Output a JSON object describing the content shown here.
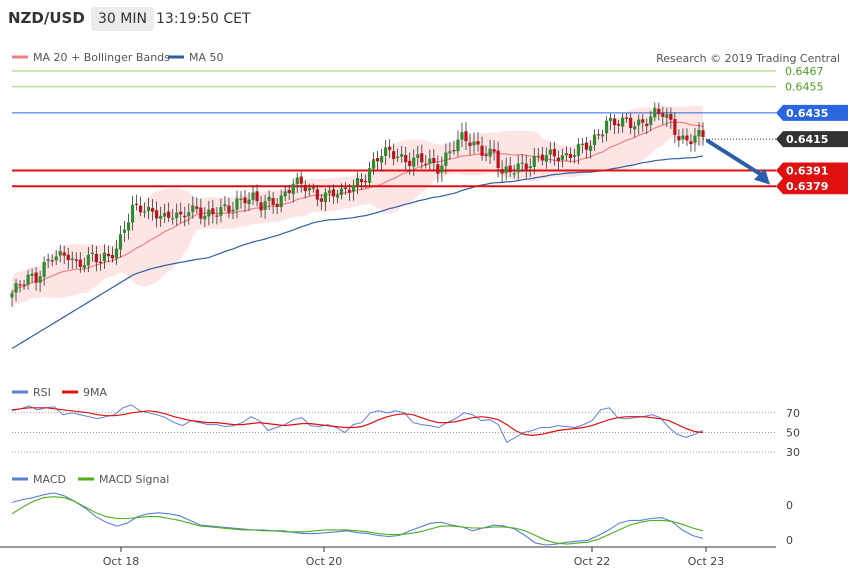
{
  "header": {
    "pair": "NZD/USD",
    "timeframe": "30 MIN",
    "time": "13:19:50 CET"
  },
  "legend_main": [
    {
      "name": "MA 20 + Bollinger Bands",
      "color": "#f08080"
    },
    {
      "name": "MA 50",
      "color": "#2f5e9e"
    }
  ],
  "legend_rsi": [
    {
      "name": "RSI",
      "color": "#5b7fd6"
    },
    {
      "name": "9MA",
      "color": "#e01010"
    }
  ],
  "legend_macd": [
    {
      "name": "MACD",
      "color": "#5b7fd6"
    },
    {
      "name": "MACD Signal",
      "color": "#4caf1a"
    }
  ],
  "copyright": "Research © 2019 Trading Central",
  "chart_data": {
    "type": "candlestick",
    "symbol": "NZD/USD",
    "interval": "30 MIN",
    "x_ticks": [
      "Oct 18",
      "Oct 20",
      "Oct 22",
      "Oct 23"
    ],
    "y_range": [
      0.6234,
      0.648
    ],
    "levels": [
      {
        "value": 0.6467,
        "label": "0.6467",
        "style": "thin",
        "color": "#9bd46a"
      },
      {
        "value": 0.6455,
        "label": "0.6455",
        "style": "thin",
        "color": "#9bd46a"
      },
      {
        "value": 0.6435,
        "label": "0.6435",
        "style": "thin",
        "color": "#2a66e0"
      },
      {
        "value": 0.6391,
        "label": "0.6391",
        "style": "bold",
        "color": "#e01010"
      },
      {
        "value": 0.6379,
        "label": "0.6379",
        "style": "bold",
        "color": "#e01010"
      }
    ],
    "last_price": {
      "value": 0.6415,
      "label": "0.6415",
      "color": "#333333"
    },
    "forecast_arrow": {
      "from": 0.6415,
      "to": 0.6381,
      "color": "#2b5ea8"
    },
    "price_path": [
      [
        0,
        0.6297
      ],
      [
        2,
        0.6302
      ],
      [
        4,
        0.6308
      ],
      [
        6,
        0.631
      ],
      [
        8,
        0.632
      ],
      [
        10,
        0.6326
      ],
      [
        12,
        0.6323
      ],
      [
        14,
        0.6325
      ],
      [
        16,
        0.632
      ],
      [
        18,
        0.6324
      ],
      [
        20,
        0.6326
      ],
      [
        22,
        0.632
      ],
      [
        24,
        0.6324
      ],
      [
        26,
        0.6332
      ],
      [
        28,
        0.635
      ],
      [
        30,
        0.6362
      ],
      [
        32,
        0.636
      ],
      [
        34,
        0.6358
      ],
      [
        36,
        0.636
      ],
      [
        38,
        0.6357
      ],
      [
        40,
        0.6358
      ],
      [
        42,
        0.6352
      ],
      [
        44,
        0.636
      ],
      [
        46,
        0.6362
      ],
      [
        48,
        0.6359
      ],
      [
        50,
        0.6358
      ],
      [
        52,
        0.6359
      ],
      [
        54,
        0.636
      ],
      [
        56,
        0.6368
      ],
      [
        58,
        0.6372
      ],
      [
        60,
        0.637
      ],
      [
        62,
        0.6362
      ],
      [
        64,
        0.6366
      ],
      [
        66,
        0.6368
      ],
      [
        68,
        0.6375
      ],
      [
        70,
        0.6382
      ],
      [
        72,
        0.6378
      ],
      [
        74,
        0.6376
      ],
      [
        76,
        0.6372
      ],
      [
        78,
        0.6374
      ],
      [
        80,
        0.6374
      ],
      [
        82,
        0.6371
      ],
      [
        84,
        0.6377
      ],
      [
        86,
        0.6383
      ],
      [
        88,
        0.6388
      ],
      [
        90,
        0.6396
      ],
      [
        92,
        0.6402
      ],
      [
        94,
        0.6404
      ],
      [
        96,
        0.6404
      ],
      [
        98,
        0.64
      ],
      [
        100,
        0.6399
      ],
      [
        102,
        0.6397
      ],
      [
        104,
        0.6396
      ],
      [
        106,
        0.6394
      ],
      [
        108,
        0.6403
      ],
      [
        110,
        0.641
      ],
      [
        112,
        0.6414
      ],
      [
        114,
        0.6412
      ],
      [
        116,
        0.641
      ],
      [
        118,
        0.6406
      ],
      [
        120,
        0.6404
      ],
      [
        122,
        0.6386
      ],
      [
        124,
        0.639
      ],
      [
        126,
        0.6396
      ],
      [
        128,
        0.6397
      ],
      [
        130,
        0.6398
      ],
      [
        132,
        0.64
      ],
      [
        134,
        0.6402
      ],
      [
        136,
        0.6404
      ],
      [
        138,
        0.6403
      ],
      [
        140,
        0.6405
      ],
      [
        142,
        0.6407
      ],
      [
        144,
        0.641
      ],
      [
        146,
        0.642
      ],
      [
        148,
        0.643
      ],
      [
        150,
        0.6427
      ],
      [
        152,
        0.6426
      ],
      [
        154,
        0.6426
      ],
      [
        156,
        0.6428
      ],
      [
        158,
        0.6431
      ],
      [
        160,
        0.6434
      ],
      [
        162,
        0.6433
      ],
      [
        164,
        0.6426
      ],
      [
        166,
        0.6418
      ],
      [
        168,
        0.6415
      ],
      [
        170,
        0.6417
      ],
      [
        172,
        0.6415
      ]
    ],
    "rsi_ticks": [
      70,
      50,
      30
    ],
    "rsi_range": [
      20,
      85
    ],
    "macd_ticks": [
      0,
      0
    ],
    "series": [
      {
        "name": "RSI",
        "values": [
          72,
          74,
          77,
          73,
          75,
          76,
          68,
          70,
          68,
          66,
          64,
          66,
          68,
          75,
          78,
          72,
          70,
          68,
          65,
          60,
          57,
          62,
          60,
          58,
          58,
          56,
          57,
          60,
          66,
          62,
          52,
          55,
          58,
          63,
          65,
          57,
          56,
          58,
          55,
          50,
          58,
          60,
          70,
          72,
          70,
          72,
          70,
          60,
          58,
          57,
          55,
          60,
          64,
          70,
          68,
          62,
          63,
          58,
          40,
          45,
          50,
          52,
          55,
          55,
          57,
          56,
          55,
          58,
          62,
          73,
          75,
          65,
          64,
          65,
          66,
          68,
          65,
          55,
          48,
          45,
          48,
          52
        ]
      },
      {
        "name": "9MA",
        "values": [
          73,
          74,
          75,
          75,
          75,
          74,
          73,
          72,
          71,
          70,
          68,
          67,
          67,
          68,
          70,
          71,
          72,
          71,
          69,
          66,
          64,
          62,
          61,
          60,
          60,
          59,
          58,
          58,
          59,
          60,
          59,
          58,
          57,
          58,
          59,
          59,
          58,
          57,
          56,
          55,
          55,
          56,
          59,
          63,
          66,
          68,
          69,
          68,
          65,
          62,
          60,
          60,
          61,
          63,
          65,
          66,
          65,
          63,
          58,
          52,
          48,
          47,
          48,
          50,
          52,
          53,
          54,
          55,
          57,
          60,
          63,
          65,
          66,
          66,
          66,
          65,
          64,
          62,
          58,
          54,
          51,
          50
        ]
      },
      {
        "name": "MACD",
        "values": [
          6.5,
          6.8,
          7.0,
          7.3,
          7.5,
          7.2,
          6.6,
          5.9,
          5.0,
          4.4,
          4.0,
          4.3,
          5.0,
          5.3,
          5.4,
          5.3,
          5.1,
          4.6,
          4.1,
          4.0,
          3.9,
          3.8,
          3.7,
          3.6,
          3.6,
          3.5,
          3.5,
          3.3,
          3.2,
          3.2,
          3.3,
          3.4,
          3.5,
          3.3,
          3.2,
          3.0,
          2.9,
          3.0,
          3.5,
          3.9,
          4.3,
          4.4,
          4.1,
          3.9,
          3.5,
          3.8,
          4.1,
          4.0,
          3.7,
          3.0,
          2.2,
          2.0,
          2.1,
          2.3,
          2.4,
          2.5,
          3.0,
          3.6,
          4.3,
          4.6,
          4.6,
          4.8,
          4.9,
          4.5,
          3.6,
          3.0,
          2.7
        ]
      },
      {
        "name": "MACD Signal",
        "values": [
          5.3,
          6.0,
          6.6,
          7.0,
          7.1,
          7.0,
          6.6,
          6.0,
          5.4,
          5.0,
          4.8,
          4.8,
          4.9,
          5.0,
          5.0,
          4.8,
          4.6,
          4.3,
          4.0,
          3.9,
          3.8,
          3.7,
          3.6,
          3.6,
          3.5,
          3.5,
          3.4,
          3.4,
          3.4,
          3.5,
          3.6,
          3.6,
          3.6,
          3.5,
          3.4,
          3.2,
          3.1,
          3.1,
          3.2,
          3.4,
          3.7,
          4.0,
          4.0,
          3.9,
          3.8,
          3.8,
          3.9,
          3.9,
          3.8,
          3.5,
          3.0,
          2.5,
          2.2,
          2.1,
          2.2,
          2.3,
          2.6,
          3.1,
          3.6,
          4.1,
          4.4,
          4.6,
          4.6,
          4.5,
          4.2,
          3.8,
          3.5
        ]
      }
    ]
  }
}
